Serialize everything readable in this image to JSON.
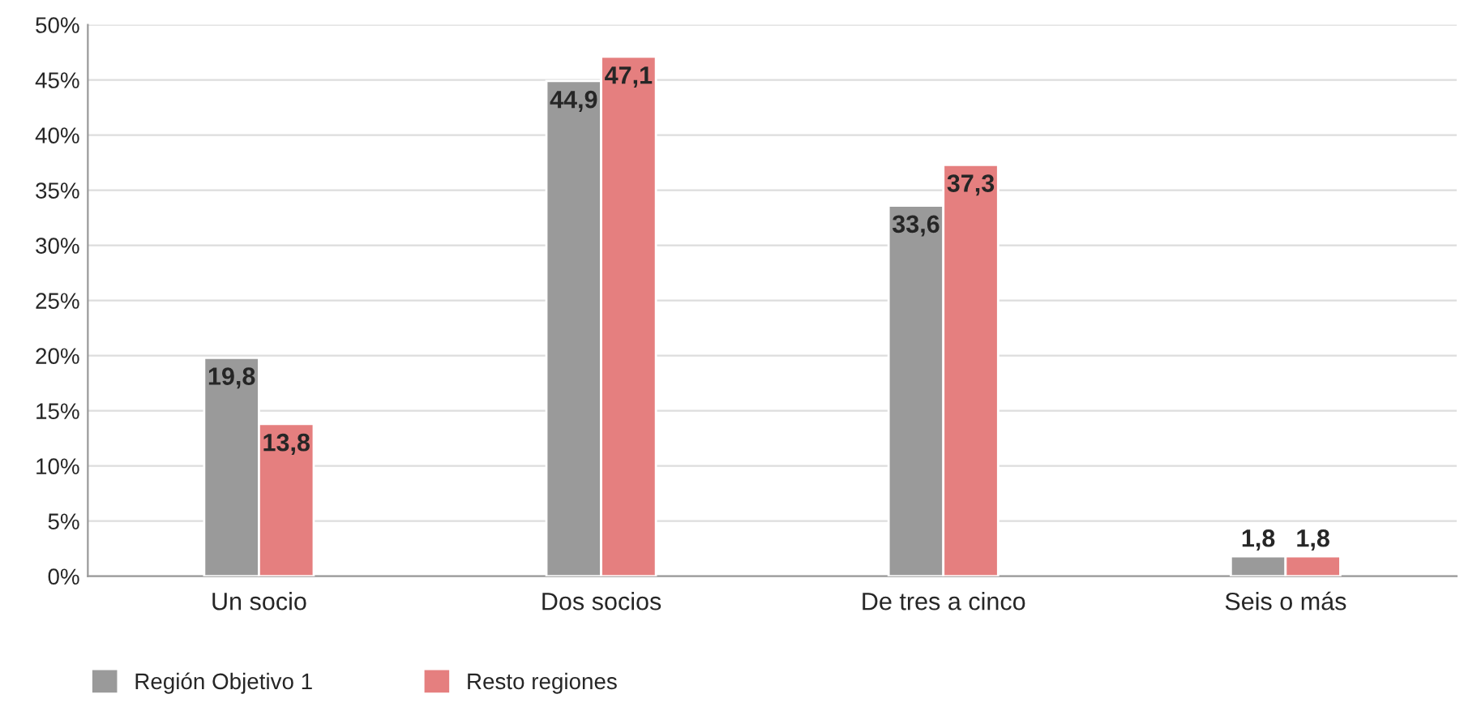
{
  "chart_data": {
    "type": "bar",
    "categories": [
      "Un socio",
      "Dos socios",
      "De tres a cinco",
      "Seis o más"
    ],
    "series": [
      {
        "name": "Región Objetivo 1",
        "color": "#9a9a9a",
        "values": [
          19.8,
          44.9,
          33.6,
          1.8
        ],
        "value_labels": [
          "19,8",
          "44,9",
          "33,6",
          "1,8"
        ]
      },
      {
        "name": "Resto regiones",
        "color": "#e57f7f",
        "values": [
          13.8,
          47.1,
          37.3,
          1.8
        ],
        "value_labels": [
          "13,8",
          "47,1",
          "37,3",
          "1,8"
        ]
      }
    ],
    "ylim": [
      0,
      50
    ],
    "yticks": [
      {
        "value": 0,
        "label": "0%"
      },
      {
        "value": 5,
        "label": "5%"
      },
      {
        "value": 10,
        "label": "10%"
      },
      {
        "value": 15,
        "label": "15%"
      },
      {
        "value": 20,
        "label": "20%"
      },
      {
        "value": 25,
        "label": "25%"
      },
      {
        "value": 30,
        "label": "30%"
      },
      {
        "value": 35,
        "label": "35%"
      },
      {
        "value": 40,
        "label": "40%"
      },
      {
        "value": 45,
        "label": "45%"
      },
      {
        "value": 50,
        "label": "50%"
      }
    ],
    "grid": "y",
    "legend": "bottom left"
  }
}
